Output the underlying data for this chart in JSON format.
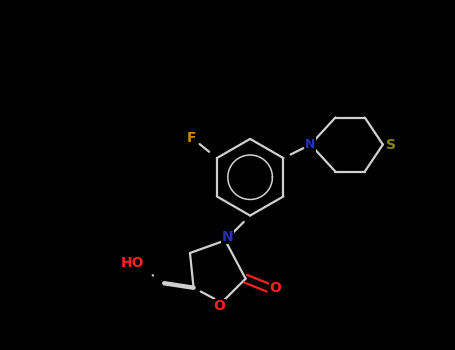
{
  "background_color": "#000000",
  "bond_color": "#d0d0d0",
  "atom_colors": {
    "N": "#2233bb",
    "O": "#ff2020",
    "F": "#cc8800",
    "S": "#888800",
    "C": "#d0d0d0"
  },
  "figsize": [
    4.55,
    3.5
  ],
  "dpi": 100,
  "lw": 1.6
}
